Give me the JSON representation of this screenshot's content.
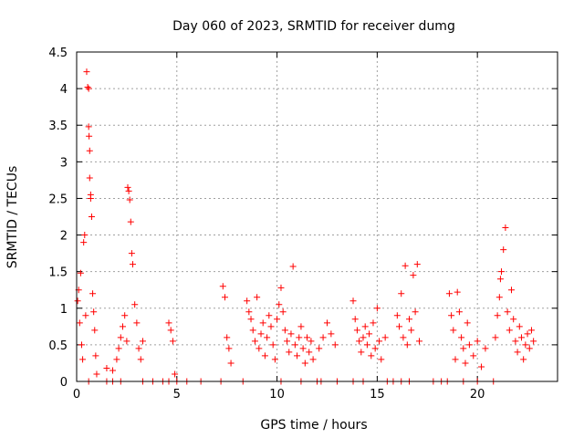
{
  "chart_data": {
    "type": "scatter",
    "title": "Day 060 of 2023, SRMTID for receiver dumg",
    "xlabel": "GPS time / hours",
    "ylabel": "SRMTID / TECUs",
    "xlim": [
      0,
      24
    ],
    "ylim": [
      0,
      4.5
    ],
    "x_ticks": [
      "0",
      "5",
      "10",
      "15",
      "20"
    ],
    "y_ticks": [
      "0",
      "0.5",
      "1",
      "1.5",
      "2",
      "2.5",
      "3",
      "3.5",
      "4",
      "4.5"
    ],
    "grid": true,
    "marker": "+",
    "color": "#ff0000",
    "series": [
      {
        "name": "SRMTID",
        "x": [
          0.05,
          0.1,
          0.15,
          0.2,
          0.25,
          0.3,
          0.35,
          0.4,
          0.45,
          0.5,
          0.55,
          0.6,
          0.6,
          0.62,
          0.65,
          0.65,
          0.7,
          0.7,
          0.75,
          0.8,
          0.85,
          0.9,
          0.95,
          1.0,
          1.5,
          1.8,
          2.0,
          2.1,
          2.2,
          2.3,
          2.4,
          2.5,
          2.55,
          2.6,
          2.65,
          2.7,
          2.75,
          2.8,
          2.9,
          3.0,
          3.1,
          3.2,
          3.3,
          4.6,
          4.7,
          4.8,
          4.9,
          7.3,
          7.4,
          7.5,
          7.6,
          7.7,
          8.5,
          8.6,
          8.7,
          8.8,
          8.9,
          9.0,
          9.1,
          9.2,
          9.3,
          9.4,
          9.5,
          9.6,
          9.7,
          9.8,
          9.9,
          10.0,
          10.1,
          10.2,
          10.3,
          10.4,
          10.5,
          10.6,
          10.7,
          10.8,
          10.9,
          11.0,
          11.1,
          11.2,
          11.3,
          11.4,
          11.5,
          11.6,
          11.7,
          11.8,
          12.1,
          12.3,
          12.5,
          12.7,
          12.9,
          13.8,
          13.9,
          14.0,
          14.1,
          14.2,
          14.3,
          14.4,
          14.5,
          14.6,
          14.7,
          14.8,
          14.9,
          15.0,
          15.1,
          15.2,
          15.4,
          16.0,
          16.1,
          16.2,
          16.3,
          16.4,
          16.5,
          16.6,
          16.7,
          16.8,
          16.9,
          17.0,
          17.1,
          18.6,
          18.7,
          18.8,
          18.9,
          19.0,
          19.1,
          19.2,
          19.3,
          19.4,
          19.5,
          19.6,
          19.8,
          20.0,
          20.2,
          20.4,
          20.9,
          21.0,
          21.1,
          21.15,
          21.2,
          21.3,
          21.4,
          21.5,
          21.6,
          21.7,
          21.8,
          21.9,
          22.0,
          22.1,
          22.2,
          22.3,
          22.4,
          22.5,
          22.6,
          22.7,
          22.8
        ],
        "y": [
          1.1,
          1.25,
          0.8,
          1.48,
          0.5,
          0.3,
          1.9,
          2.0,
          0.9,
          4.23,
          4.02,
          4.0,
          3.48,
          3.35,
          3.15,
          2.78,
          2.55,
          2.5,
          2.25,
          1.2,
          0.95,
          0.7,
          0.35,
          0.1,
          0.18,
          0.15,
          0.3,
          0.45,
          0.6,
          0.75,
          0.9,
          0.55,
          2.65,
          2.6,
          2.48,
          2.18,
          1.75,
          1.6,
          1.05,
          0.8,
          0.45,
          0.3,
          0.55,
          0.8,
          0.7,
          0.55,
          0.1,
          1.3,
          1.15,
          0.6,
          0.45,
          0.25,
          1.1,
          0.95,
          0.85,
          0.7,
          0.55,
          1.15,
          0.45,
          0.65,
          0.8,
          0.35,
          0.6,
          0.9,
          0.75,
          0.5,
          0.3,
          0.85,
          1.05,
          1.28,
          0.95,
          0.7,
          0.55,
          0.4,
          0.65,
          1.57,
          0.5,
          0.35,
          0.6,
          0.75,
          0.45,
          0.25,
          0.6,
          0.4,
          0.55,
          0.3,
          0.45,
          0.6,
          0.8,
          0.65,
          0.5,
          1.1,
          0.85,
          0.7,
          0.55,
          0.4,
          0.6,
          0.75,
          0.5,
          0.65,
          0.35,
          0.8,
          0.45,
          1.0,
          0.55,
          0.3,
          0.6,
          0.9,
          0.75,
          1.2,
          0.6,
          1.58,
          0.5,
          0.85,
          0.7,
          1.45,
          0.95,
          1.6,
          0.55,
          1.2,
          0.9,
          0.7,
          0.3,
          1.22,
          0.95,
          0.6,
          0.45,
          0.25,
          0.8,
          0.5,
          0.35,
          0.55,
          0.2,
          0.45,
          0.6,
          0.9,
          1.15,
          1.4,
          1.5,
          1.8,
          2.1,
          0.95,
          0.7,
          1.25,
          0.85,
          0.55,
          0.4,
          0.75,
          0.6,
          0.3,
          0.5,
          0.65,
          0.45,
          0.7,
          0.55
        ],
        "zero_x": [
          0.6,
          1.5,
          1.8,
          2.2,
          3.3,
          3.8,
          4.3,
          4.6,
          5.0,
          5.5,
          6.2,
          7.2,
          8.3,
          10.2,
          11.2,
          12.0,
          12.2,
          13.0,
          13.8,
          14.3,
          15.5,
          15.8,
          16.2,
          16.6,
          17.8,
          18.2,
          18.5,
          19.3,
          20.0,
          20.8
        ]
      }
    ]
  }
}
